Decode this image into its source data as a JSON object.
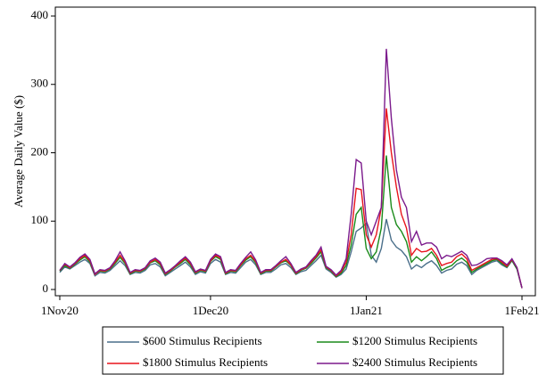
{
  "chart_data": {
    "type": "line",
    "y_label": "Average Daily Value ($)",
    "x": [
      "1Nov20",
      "2Nov20",
      "3Nov20",
      "4Nov20",
      "5Nov20",
      "6Nov20",
      "7Nov20",
      "8Nov20",
      "9Nov20",
      "10Nov20",
      "11Nov20",
      "12Nov20",
      "13Nov20",
      "14Nov20",
      "15Nov20",
      "16Nov20",
      "17Nov20",
      "18Nov20",
      "19Nov20",
      "20Nov20",
      "21Nov20",
      "22Nov20",
      "23Nov20",
      "24Nov20",
      "25Nov20",
      "26Nov20",
      "27Nov20",
      "28Nov20",
      "29Nov20",
      "30Nov20",
      "1Dec20",
      "2Dec20",
      "3Dec20",
      "4Dec20",
      "5Dec20",
      "6Dec20",
      "7Dec20",
      "8Dec20",
      "9Dec20",
      "10Dec20",
      "11Dec20",
      "12Dec20",
      "13Dec20",
      "14Dec20",
      "15Dec20",
      "16Dec20",
      "17Dec20",
      "18Dec20",
      "19Dec20",
      "20Dec20",
      "21Dec20",
      "22Dec20",
      "23Dec20",
      "24Dec20",
      "25Dec20",
      "26Dec20",
      "27Dec20",
      "28Dec20",
      "29Dec20",
      "30Dec20",
      "31Dec20",
      "1Jan21",
      "2Jan21",
      "3Jan21",
      "4Jan21",
      "5Jan21",
      "6Jan21",
      "7Jan21",
      "8Jan21",
      "9Jan21",
      "10Jan21",
      "11Jan21",
      "12Jan21",
      "13Jan21",
      "14Jan21",
      "15Jan21",
      "16Jan21",
      "17Jan21",
      "18Jan21",
      "19Jan21",
      "20Jan21",
      "21Jan21",
      "22Jan21",
      "23Jan21",
      "24Jan21",
      "25Jan21",
      "26Jan21",
      "27Jan21",
      "28Jan21",
      "29Jan21",
      "30Jan21",
      "31Jan21",
      "1Feb21"
    ],
    "series": [
      {
        "name": "$600 Stimulus Recipients",
        "color": "#4a6f8a",
        "values": [
          25,
          33,
          30,
          35,
          40,
          44,
          38,
          20,
          25,
          24,
          28,
          35,
          42,
          35,
          22,
          25,
          24,
          28,
          36,
          38,
          33,
          20,
          25,
          30,
          35,
          40,
          33,
          22,
          26,
          24,
          38,
          44,
          40,
          22,
          25,
          24,
          32,
          40,
          44,
          36,
          22,
          25,
          25,
          30,
          36,
          38,
          32,
          22,
          26,
          28,
          35,
          42,
          50,
          30,
          25,
          18,
          22,
          30,
          55,
          85,
          90,
          97,
          50,
          40,
          60,
          103,
          72,
          62,
          57,
          48,
          30,
          36,
          32,
          38,
          42,
          35,
          24,
          28,
          30,
          37,
          40,
          35,
          22,
          28,
          32,
          36,
          40,
          42,
          36,
          32,
          42,
          30,
          2
        ]
      },
      {
        "name": "$1200 Stimulus Recipients",
        "color": "#1a8a1a",
        "values": [
          27,
          35,
          31,
          37,
          43,
          48,
          40,
          22,
          27,
          26,
          30,
          38,
          47,
          38,
          23,
          27,
          26,
          30,
          39,
          42,
          36,
          22,
          27,
          33,
          38,
          44,
          36,
          24,
          28,
          26,
          41,
          48,
          44,
          23,
          27,
          26,
          35,
          43,
          48,
          39,
          23,
          27,
          27,
          33,
          39,
          42,
          35,
          23,
          28,
          31,
          38,
          46,
          55,
          32,
          27,
          19,
          24,
          35,
          65,
          110,
          120,
          60,
          45,
          55,
          90,
          196,
          120,
          95,
          85,
          70,
          40,
          48,
          42,
          48,
          55,
          45,
          28,
          32,
          35,
          42,
          46,
          40,
          25,
          30,
          34,
          38,
          42,
          44,
          38,
          33,
          43,
          30,
          2
        ]
      },
      {
        "name": "$1800 Stimulus Recipients",
        "color": "#e8141c",
        "values": [
          28,
          37,
          32,
          38,
          45,
          50,
          42,
          22,
          28,
          27,
          31,
          40,
          50,
          40,
          24,
          28,
          27,
          31,
          40,
          44,
          38,
          23,
          28,
          34,
          40,
          46,
          38,
          25,
          29,
          27,
          42,
          50,
          46,
          24,
          28,
          27,
          36,
          45,
          50,
          41,
          24,
          28,
          28,
          34,
          40,
          44,
          36,
          24,
          29,
          32,
          40,
          48,
          58,
          33,
          28,
          20,
          26,
          40,
          80,
          148,
          146,
          80,
          62,
          80,
          120,
          265,
          200,
          150,
          110,
          90,
          50,
          60,
          55,
          56,
          60,
          50,
          35,
          38,
          40,
          48,
          52,
          45,
          28,
          32,
          36,
          40,
          44,
          45,
          40,
          34,
          44,
          32,
          2
        ]
      },
      {
        "name": "$2400 Stimulus Recipients",
        "color": "#7b1a8c",
        "values": [
          28,
          38,
          33,
          39,
          47,
          52,
          44,
          23,
          29,
          28,
          32,
          42,
          55,
          42,
          25,
          29,
          28,
          32,
          42,
          46,
          40,
          24,
          29,
          35,
          42,
          48,
          40,
          26,
          30,
          28,
          44,
          52,
          48,
          25,
          29,
          28,
          38,
          47,
          55,
          43,
          25,
          29,
          29,
          35,
          42,
          48,
          38,
          25,
          30,
          33,
          42,
          50,
          62,
          34,
          29,
          21,
          28,
          45,
          110,
          190,
          185,
          100,
          80,
          100,
          120,
          352,
          250,
          175,
          135,
          120,
          70,
          85,
          65,
          68,
          68,
          62,
          45,
          50,
          48,
          52,
          56,
          50,
          35,
          36,
          40,
          45,
          46,
          46,
          42,
          36,
          45,
          32,
          2
        ]
      }
    ],
    "xlim": [
      "1Nov20",
      "1Feb21"
    ],
    "xticks": [
      "1Nov20",
      "1Dec20",
      "1Jan21",
      "1Feb21"
    ],
    "ylim": [
      0,
      400
    ],
    "yticks": [
      0,
      100,
      200,
      300,
      400
    ],
    "grid": false
  }
}
